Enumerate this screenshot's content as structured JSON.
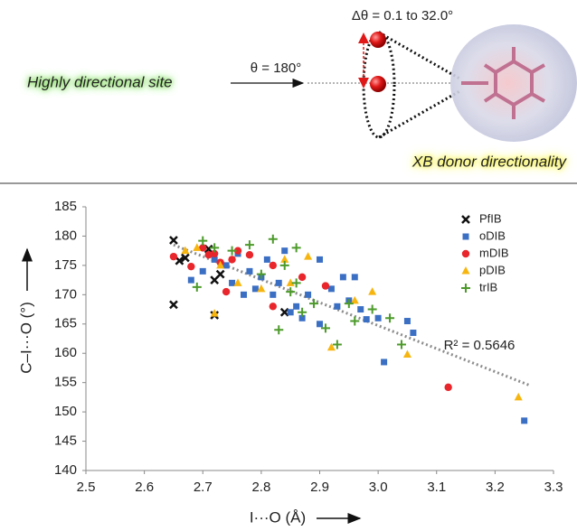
{
  "diagram": {
    "left_label": "Highly directional site",
    "theta_label": "θ = 180°",
    "delta_label": "Δθ = 0.1 to 32.0°",
    "right_label": "XB donor directionality"
  },
  "chart_data": {
    "type": "scatter",
    "xlabel": "I···O (Å)",
    "ylabel": "C–I···O (°)",
    "xlim": [
      2.5,
      3.3
    ],
    "ylim": [
      140,
      185
    ],
    "xticks": [
      2.5,
      2.6,
      2.7,
      2.8,
      2.9,
      {
        "value": 3,
        "label": "3.0"
      },
      3.1,
      3.2,
      3.3
    ],
    "yticks": [
      140,
      145,
      150,
      155,
      160,
      165,
      170,
      175,
      180,
      185
    ],
    "legend": "upper right",
    "series": [
      {
        "name": "PfIB",
        "color": "#111111",
        "marker": "x",
        "x": [
          2.65,
          2.65,
          2.67,
          2.66,
          2.71,
          2.72,
          2.72,
          2.84,
          2.73
        ],
        "values": [
          179.3,
          168.3,
          176.3,
          175.8,
          177.8,
          172.5,
          166.5,
          167.0,
          173.5
        ]
      },
      {
        "name": "oDIB",
        "color": "#3b6fc4",
        "marker": "square",
        "x": [
          2.68,
          2.7,
          2.72,
          2.74,
          2.75,
          2.76,
          2.77,
          2.78,
          2.79,
          2.8,
          2.81,
          2.82,
          2.83,
          2.84,
          2.85,
          2.86,
          2.87,
          2.88,
          2.9,
          2.92,
          2.94,
          2.95,
          2.96,
          2.98,
          3.0,
          3.01,
          3.05,
          3.06,
          3.25,
          2.9,
          2.93,
          2.97
        ],
        "values": [
          172.5,
          174,
          176,
          175,
          172,
          177,
          170,
          174,
          171,
          173,
          176,
          170,
          172,
          177.5,
          167,
          168,
          166,
          170,
          165,
          171,
          173,
          169,
          173,
          165.8,
          166,
          158.5,
          165.5,
          163.5,
          148.5,
          176,
          168,
          167.5
        ]
      },
      {
        "name": "mDIB",
        "color": "#e8262b",
        "marker": "circle",
        "x": [
          2.65,
          2.68,
          2.7,
          2.72,
          2.73,
          2.74,
          2.75,
          2.76,
          2.78,
          2.82,
          2.82,
          2.87,
          2.91,
          3.12,
          2.71
        ],
        "values": [
          176.5,
          174.8,
          178,
          177,
          175.5,
          170.5,
          176,
          177.5,
          176.8,
          175,
          168,
          173,
          171.5,
          154.2,
          176.8
        ]
      },
      {
        "name": "pDIB",
        "color": "#f7b50f",
        "marker": "triangle",
        "x": [
          2.67,
          2.69,
          2.72,
          2.73,
          2.76,
          2.8,
          2.84,
          2.85,
          2.92,
          2.96,
          2.99,
          3.05,
          3.24,
          2.88
        ],
        "values": [
          177.5,
          178,
          166.8,
          175,
          172,
          171,
          176,
          172,
          161,
          169,
          170.5,
          159.8,
          152.5,
          176.5
        ]
      },
      {
        "name": "trIB",
        "color": "#4c9a2a",
        "marker": "plus",
        "x": [
          2.69,
          2.7,
          2.72,
          2.75,
          2.78,
          2.8,
          2.82,
          2.84,
          2.85,
          2.86,
          2.87,
          2.89,
          2.91,
          2.93,
          2.95,
          2.96,
          2.99,
          3.02,
          3.04,
          2.83,
          2.86
        ],
        "values": [
          171.3,
          179.2,
          178,
          177.5,
          178.5,
          173.5,
          179.5,
          175,
          170.5,
          172,
          167,
          168.5,
          164.3,
          161.5,
          168.5,
          165.5,
          167.5,
          166,
          161.5,
          164,
          178
        ]
      }
    ],
    "trendline": {
      "x": [
        2.65,
        3.26
      ],
      "values": [
        178.5,
        154.5
      ],
      "color": "#8c8c8c"
    },
    "annotation": "R² = 0.5646"
  }
}
